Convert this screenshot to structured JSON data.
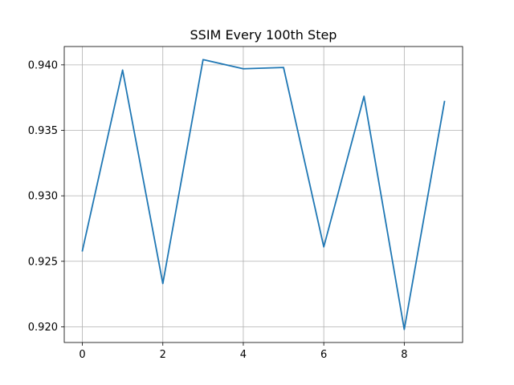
{
  "chart_data": {
    "type": "line",
    "title": "SSIM Every 100th Step",
    "xlabel": "",
    "ylabel": "",
    "x": [
      0,
      1,
      2,
      3,
      4,
      5,
      6,
      7,
      8,
      9
    ],
    "series": [
      {
        "values": [
          0.9258,
          0.9396,
          0.9233,
          0.9404,
          0.9397,
          0.9398,
          0.9261,
          0.9376,
          0.9198,
          0.9372
        ]
      }
    ],
    "xlim": [
      -0.45,
      9.45
    ],
    "ylim": [
      0.9188,
      0.9414
    ],
    "xticks": [
      0,
      2,
      4,
      6,
      8
    ],
    "xtick_labels": [
      "0",
      "2",
      "4",
      "6",
      "8"
    ],
    "yticks": [
      0.92,
      0.925,
      0.93,
      0.935,
      0.94
    ],
    "ytick_labels": [
      "0.920",
      "0.925",
      "0.930",
      "0.935",
      "0.940"
    ],
    "grid": true,
    "line_color": "#1f77b4",
    "grid_color": "#b0b0b0"
  }
}
